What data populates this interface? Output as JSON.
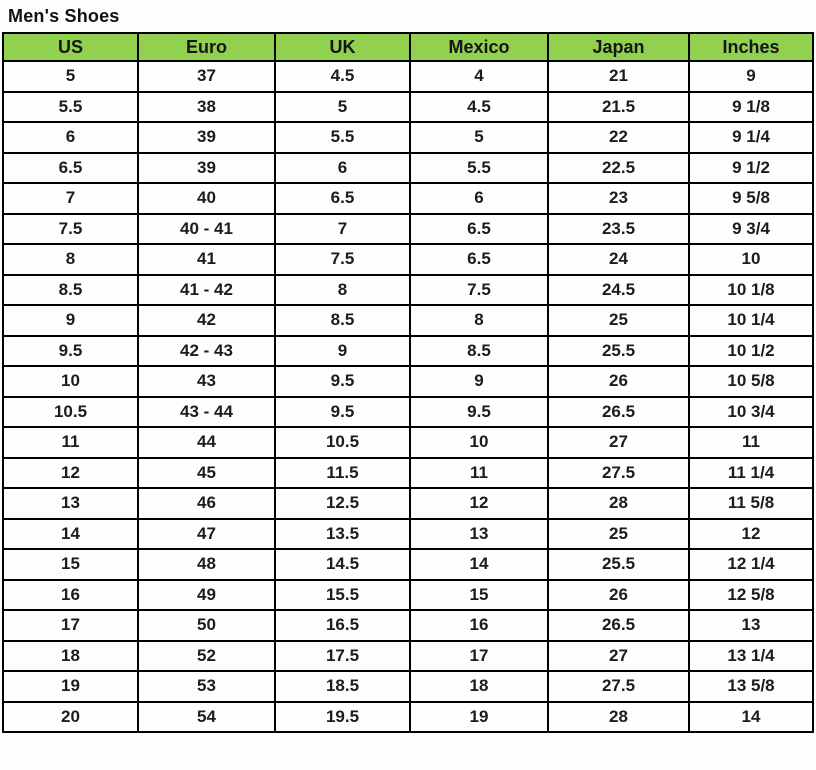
{
  "page": {
    "title": "Men's Shoes"
  },
  "colors": {
    "header_bg": "#92D050",
    "border": "#000000",
    "text": "#1c1c1c",
    "background": "#fdfdfd"
  },
  "table": {
    "columns": [
      "US",
      "Euro",
      "UK",
      "Mexico",
      "Japan",
      "Inches"
    ],
    "rows": [
      [
        "5",
        "37",
        "4.5",
        "4",
        "21",
        "9"
      ],
      [
        "5.5",
        "38",
        "5",
        "4.5",
        "21.5",
        "9 1/8"
      ],
      [
        "6",
        "39",
        "5.5",
        "5",
        "22",
        "9 1/4"
      ],
      [
        "6.5",
        "39",
        "6",
        "5.5",
        "22.5",
        "9 1/2"
      ],
      [
        "7",
        "40",
        "6.5",
        "6",
        "23",
        "9 5/8"
      ],
      [
        "7.5",
        "40 - 41",
        "7",
        "6.5",
        "23.5",
        "9 3/4"
      ],
      [
        "8",
        "41",
        "7.5",
        "6.5",
        "24",
        "10"
      ],
      [
        "8.5",
        "41 - 42",
        "8",
        "7.5",
        "24.5",
        "10 1/8"
      ],
      [
        "9",
        "42",
        "8.5",
        "8",
        "25",
        "10 1/4"
      ],
      [
        "9.5",
        "42 - 43",
        "9",
        "8.5",
        "25.5",
        "10 1/2"
      ],
      [
        "10",
        "43",
        "9.5",
        "9",
        "26",
        "10 5/8"
      ],
      [
        "10.5",
        "43 - 44",
        "9.5",
        "9.5",
        "26.5",
        "10 3/4"
      ],
      [
        "11",
        "44",
        "10.5",
        "10",
        "27",
        "11"
      ],
      [
        "12",
        "45",
        "11.5",
        "11",
        "27.5",
        "11 1/4"
      ],
      [
        "13",
        "46",
        "12.5",
        "12",
        "28",
        "11 5/8"
      ],
      [
        "14",
        "47",
        "13.5",
        "13",
        "25",
        "12"
      ],
      [
        "15",
        "48",
        "14.5",
        "14",
        "25.5",
        "12 1/4"
      ],
      [
        "16",
        "49",
        "15.5",
        "15",
        "26",
        "12 5/8"
      ],
      [
        "17",
        "50",
        "16.5",
        "16",
        "26.5",
        "13"
      ],
      [
        "18",
        "52",
        "17.5",
        "17",
        "27",
        "13 1/4"
      ],
      [
        "19",
        "53",
        "18.5",
        "18",
        "27.5",
        "13 5/8"
      ],
      [
        "20",
        "54",
        "19.5",
        "19",
        "28",
        "14"
      ]
    ]
  }
}
